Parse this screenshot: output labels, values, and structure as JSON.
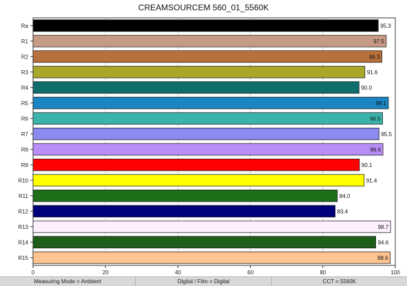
{
  "chart_data": {
    "type": "bar",
    "orientation": "horizontal",
    "title": "CREAMSOURCEM 560_01_5560K",
    "xlim": [
      0,
      100
    ],
    "x_ticks": [
      "0",
      "20",
      "40",
      "60",
      "80",
      "100"
    ],
    "grid": "vertical dashed",
    "categories": [
      "Ra",
      "R1",
      "R2",
      "R3",
      "R4",
      "R5",
      "R6",
      "R7",
      "R8",
      "R9",
      "R10",
      "R11",
      "R12",
      "R13",
      "R14",
      "R15"
    ],
    "values": [
      95.3,
      97.5,
      96.3,
      91.6,
      90.0,
      98.1,
      96.5,
      95.5,
      96.6,
      90.1,
      91.4,
      84.0,
      83.4,
      98.7,
      94.6,
      98.6
    ],
    "value_labels": [
      "95.3",
      "97.5",
      "96.3",
      "91.6",
      "90.0",
      "98.1",
      "96.5",
      "95.5",
      "96.6",
      "90.1",
      "91.4",
      "84.0",
      "83.4",
      "98.7",
      "94.6",
      "98.6"
    ],
    "colors": [
      "#000000",
      "#c79a86",
      "#b8703c",
      "#a9a72a",
      "#0e6e6c",
      "#1a85c2",
      "#3bb3ab",
      "#8a8af0",
      "#b98df7",
      "#ff0000",
      "#ffff00",
      "#1e6e1a",
      "#00007a",
      "#fdeffd",
      "#1e5e1a",
      "#ffc490"
    ]
  },
  "footer": {
    "measuring_mode": "Measuring Mode = Ambient",
    "digital_film": "Digital / Film = Digital",
    "cct": "CCT = 5560K"
  }
}
